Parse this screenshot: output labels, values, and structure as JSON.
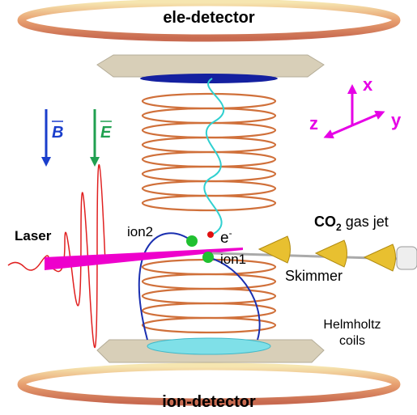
{
  "detectors": {
    "top": "ele-detector",
    "bottom": "ion-detector"
  },
  "fields": {
    "magnetic": "B",
    "electric": "E"
  },
  "axes": {
    "x": "x",
    "y": "y",
    "z": "z"
  },
  "laser": "Laser",
  "particles": {
    "ion2": "ion2",
    "ion1": "ion1",
    "electron": {
      "symbol": "e",
      "charge": "-"
    }
  },
  "gas_jet": {
    "formula": "CO",
    "subscript": "2",
    "rest": "gas jet"
  },
  "skimmer": "Skimmer",
  "coils": [
    "Helmholtz",
    "coils"
  ]
}
